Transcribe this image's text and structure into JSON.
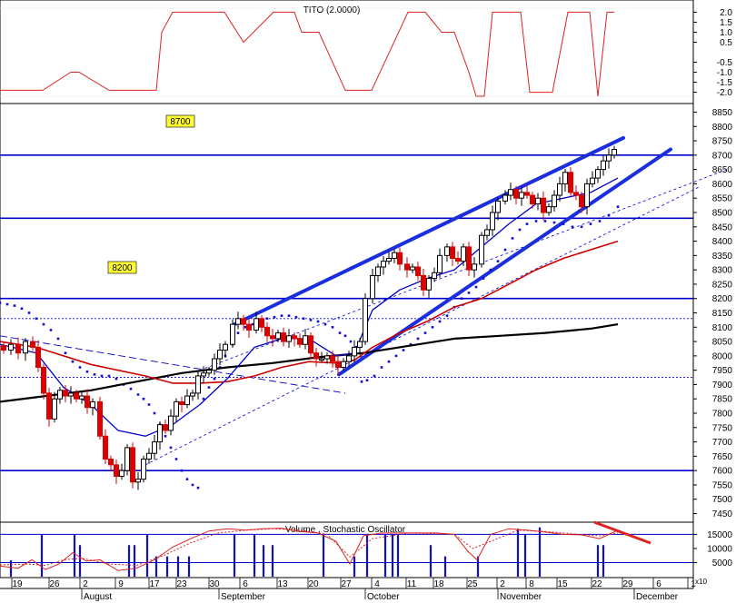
{
  "top_panel": {
    "title": "TITO (2.0000)",
    "ticks": [
      "2.0",
      "1.5",
      "1.0",
      "0.5",
      "-0.5",
      "-1.0",
      "-1.5",
      "-2.0"
    ],
    "tick_values": [
      2.0,
      1.5,
      1.0,
      0.5,
      -0.5,
      -1.0,
      -1.5,
      -2.0
    ],
    "ylim": [
      -2.2,
      2.2
    ],
    "series_x": [
      0,
      47,
      78,
      87,
      120,
      172,
      178,
      190,
      247,
      268,
      301,
      324,
      332,
      351,
      380,
      409,
      449,
      468,
      486,
      500,
      516,
      524,
      533,
      542,
      573,
      583,
      608,
      625,
      649,
      658,
      668,
      676
    ],
    "series_y": [
      -1.9,
      -1.9,
      -1.0,
      -1.0,
      -1.9,
      -1.9,
      1.0,
      2.0,
      2.0,
      0.5,
      2.0,
      2.0,
      1.0,
      1.0,
      -1.9,
      -1.9,
      2.0,
      2.0,
      1.0,
      1.0,
      -1.0,
      -2.2,
      -2.2,
      2.0,
      2.0,
      -2.0,
      -2.0,
      2.0,
      2.0,
      -2.2,
      2.0,
      2.0
    ]
  },
  "price_panel": {
    "ticks": [
      "8850",
      "8800",
      "8750",
      "8700",
      "8650",
      "8600",
      "8550",
      "8500",
      "8450",
      "8400",
      "8350",
      "8300",
      "8250",
      "8200",
      "8150",
      "8100",
      "8050",
      "8000",
      "7950",
      "7900",
      "7850",
      "7800",
      "7750",
      "7700",
      "7650",
      "7600",
      "7550",
      "7500",
      "7450"
    ],
    "tick_values": [
      8850,
      8800,
      8750,
      8700,
      8650,
      8600,
      8550,
      8500,
      8450,
      8400,
      8350,
      8300,
      8250,
      8200,
      8150,
      8100,
      8050,
      8000,
      7950,
      7900,
      7850,
      7800,
      7750,
      7700,
      7650,
      7600,
      7550,
      7500,
      7450
    ],
    "ylim": [
      7420,
      8880
    ],
    "label_8700": "8700",
    "label_8200": "8200",
    "horizontal_levels": [
      8700,
      8480,
      8200,
      7600
    ],
    "dotted_levels": [
      8130,
      7925
    ],
    "uptrend_upper": [
      [
        258,
        8110
      ],
      [
        686,
        8760
      ]
    ],
    "uptrend_lower": [
      [
        373,
        7935
      ],
      [
        738,
        8720
      ]
    ],
    "downtrend": [
      [
        0,
        8070
      ],
      [
        380,
        7870
      ]
    ],
    "channel_dashed_1": [
      [
        160,
        7620
      ],
      [
        770,
        8590
      ]
    ],
    "channel_dashed_2": [
      [
        220,
        7950
      ],
      [
        800,
        8650
      ]
    ],
    "candles_x": [
      4,
      12,
      20,
      28,
      36,
      42,
      48,
      54,
      60,
      66,
      72,
      78,
      84,
      90,
      96,
      102,
      110,
      116,
      122,
      128,
      134,
      140,
      146,
      152,
      158,
      164,
      170,
      176,
      182,
      188,
      194,
      200,
      206,
      212,
      218,
      224,
      230,
      236,
      242,
      248,
      256,
      262,
      268,
      274,
      282,
      288,
      294,
      300,
      306,
      312,
      318,
      324,
      330,
      336,
      342,
      348,
      354,
      360,
      366,
      372,
      378,
      384,
      390,
      396,
      402,
      410,
      416,
      422,
      428,
      434,
      440,
      448,
      454,
      460,
      466,
      472,
      478,
      484,
      492,
      498,
      504,
      510,
      516,
      522,
      530,
      536,
      542,
      548,
      556,
      562,
      568,
      574,
      580,
      586,
      592,
      598,
      604,
      610,
      616,
      622,
      628,
      634,
      640,
      646,
      652,
      658,
      664,
      670,
      676
    ],
    "candles_close": [
      8020,
      8040,
      8010,
      8050,
      8030,
      7960,
      7870,
      7780,
      7850,
      7880,
      7860,
      7870,
      7850,
      7860,
      7820,
      7840,
      7720,
      7640,
      7620,
      7580,
      7600,
      7680,
      7560,
      7570,
      7640,
      7660,
      7700,
      7760,
      7740,
      7790,
      7840,
      7830,
      7860,
      7870,
      7930,
      7940,
      7950,
      7990,
      8020,
      8040,
      8110,
      8130,
      8110,
      8090,
      8130,
      8100,
      8070,
      8060,
      8080,
      8050,
      8070,
      8060,
      8040,
      8070,
      8010,
      7990,
      7990,
      8000,
      7980,
      7960,
      7980,
      8000,
      8030,
      8050,
      8200,
      8280,
      8310,
      8330,
      8340,
      8360,
      8320,
      8300,
      8310,
      8280,
      8230,
      8270,
      8290,
      8350,
      8380,
      8340,
      8330,
      8380,
      8300,
      8320,
      8420,
      8440,
      8500,
      8540,
      8560,
      8580,
      8550,
      8570,
      8560,
      8530,
      8550,
      8500,
      8520,
      8560,
      8600,
      8640,
      8570,
      8560,
      8520,
      8600,
      8620,
      8650,
      8680,
      8700,
      8720
    ],
    "sma_fast_x": [
      0,
      40,
      70,
      100,
      130,
      160,
      190,
      220,
      250,
      280,
      310,
      340,
      370,
      390,
      410,
      440,
      470,
      500,
      530,
      560,
      590,
      620,
      650,
      680
    ],
    "sma_fast_y": [
      8040,
      8010,
      7890,
      7830,
      7740,
      7720,
      7760,
      7830,
      7920,
      8030,
      8060,
      8060,
      8000,
      8010,
      8160,
      8230,
      8270,
      8300,
      8380,
      8460,
      8530,
      8550,
      8570,
      8620
    ],
    "sma_mid_x": [
      0,
      40,
      70,
      100,
      130,
      160,
      190,
      220,
      250,
      280,
      310,
      340,
      370,
      390,
      410,
      440,
      470,
      500,
      530,
      560,
      590,
      620,
      650,
      680
    ],
    "sma_mid_y": [
      8050,
      8030,
      8000,
      7970,
      7950,
      7930,
      7905,
      7905,
      7910,
      7930,
      7960,
      7980,
      7975,
      7985,
      8030,
      8080,
      8120,
      8170,
      8200,
      8250,
      8300,
      8340,
      8370,
      8400
    ],
    "sma_slow_x": [
      0,
      50,
      100,
      150,
      200,
      250,
      300,
      350,
      400,
      450,
      500,
      550,
      600,
      650,
      680
    ],
    "sma_slow_y": [
      7840,
      7860,
      7880,
      7910,
      7940,
      7960,
      7975,
      7995,
      8010,
      8035,
      8060,
      8070,
      8080,
      8095,
      8110
    ],
    "psar_x": [
      0,
      8,
      16,
      24,
      32,
      40,
      48,
      56,
      64,
      72,
      80,
      88,
      96,
      104,
      112,
      120,
      128,
      136,
      144,
      152,
      158,
      164,
      170,
      176,
      182,
      188,
      194,
      200,
      206,
      212,
      218,
      224,
      230,
      236,
      242,
      248,
      256,
      262,
      270,
      278,
      286,
      294,
      302,
      310,
      318,
      326,
      334,
      342,
      350,
      358,
      366,
      374,
      380,
      386,
      392,
      398,
      404,
      412,
      420,
      428,
      436,
      444,
      452,
      460,
      468,
      476,
      484,
      492,
      500,
      508,
      516,
      524,
      532,
      540,
      548,
      556,
      564,
      572,
      580,
      590,
      600,
      610,
      620,
      630,
      640,
      650,
      660,
      670,
      680
    ],
    "psar_y": [
      8185,
      8180,
      8175,
      8165,
      8150,
      8130,
      8110,
      8090,
      8060,
      8010,
      7980,
      7960,
      7945,
      7935,
      7930,
      7930,
      7920,
      7900,
      7885,
      7865,
      7850,
      7830,
      7800,
      7760,
      7720,
      7680,
      7640,
      7600,
      7570,
      7550,
      7540,
      7850,
      7890,
      7920,
      7960,
      8000,
      8040,
      8080,
      8100,
      8110,
      8120,
      8130,
      8135,
      8140,
      8140,
      8135,
      8130,
      8125,
      8120,
      8110,
      8100,
      8080,
      8070,
      8050,
      8030,
      7910,
      7915,
      7930,
      7960,
      7980,
      8000,
      8020,
      8040,
      8060,
      8080,
      8100,
      8120,
      8140,
      8170,
      8200,
      8220,
      8240,
      8270,
      8300,
      8330,
      8370,
      8410,
      8440,
      8460,
      8470,
      8470,
      8465,
      8460,
      8450,
      8450,
      8460,
      8470,
      8490,
      8520
    ]
  },
  "volume_panel": {
    "title": "Volume , Stochastic Oscillator",
    "ticks": [
      "15000",
      "10000",
      "5000"
    ],
    "tick_values": [
      15000,
      10000,
      5000
    ],
    "multiplier": "x10",
    "ylim": [
      0,
      19000
    ],
    "bars_x": [
      12,
      46,
      82,
      88,
      142,
      148,
      162,
      172,
      184,
      196,
      208,
      258,
      280,
      290,
      300,
      356,
      390,
      404,
      424,
      432,
      438,
      474,
      490,
      526,
      570,
      578,
      594,
      658,
      664
    ],
    "bars_v": [
      5800,
      14800,
      14800,
      11200,
      11200,
      11200,
      14800,
      7200,
      7200,
      7200,
      7200,
      14800,
      14800,
      11200,
      11200,
      14800,
      7200,
      14800,
      14800,
      14800,
      14800,
      11200,
      7200,
      7200,
      17000,
      14800,
      17500,
      11200,
      11200
    ],
    "stoch_x": [
      0,
      20,
      35,
      50,
      65,
      80,
      95,
      110,
      130,
      150,
      170,
      190,
      210,
      230,
      250,
      270,
      290,
      310,
      330,
      350,
      370,
      385,
      400,
      420,
      450,
      480,
      500,
      515,
      525,
      540,
      560,
      580,
      600,
      620,
      640,
      660,
      680
    ],
    "stoch_y": [
      3800,
      3000,
      6000,
      2500,
      4500,
      8500,
      5500,
      6000,
      2200,
      3000,
      6000,
      10500,
      13500,
      16200,
      17000,
      16500,
      17000,
      17200,
      16000,
      15500,
      12500,
      4500,
      14500,
      15500,
      15500,
      15500,
      15000,
      9000,
      6000,
      15000,
      17000,
      16500,
      15800,
      15000,
      14800,
      13500,
      16500
    ],
    "stoch_sig_x": [
      0,
      30,
      50,
      70,
      90,
      120,
      150,
      180,
      210,
      240,
      270,
      300,
      330,
      360,
      385,
      410,
      450,
      500,
      520,
      540,
      570,
      600,
      630,
      660,
      680
    ],
    "stoch_sig_y": [
      4200,
      4500,
      4000,
      6000,
      6500,
      4500,
      4000,
      7500,
      12000,
      15500,
      16500,
      17000,
      16500,
      15000,
      7000,
      13500,
      15500,
      15000,
      10000,
      12500,
      16500,
      16000,
      15200,
      14500,
      15500
    ]
  },
  "x_axis": {
    "day_labels": [
      "19",
      "26",
      "2",
      "9",
      "17",
      "23",
      "30",
      "6",
      "13",
      "20",
      "27",
      "4",
      "11",
      "18",
      "25",
      "2",
      "8",
      "15",
      "22",
      "29",
      "6",
      "1"
    ],
    "day_label_x": [
      19,
      60,
      94,
      133,
      170,
      200,
      236,
      270,
      311,
      345,
      381,
      415,
      453,
      483,
      520,
      553,
      585,
      619,
      657,
      691,
      725,
      763
    ],
    "months": [
      "August",
      "September",
      "October",
      "November",
      "December"
    ],
    "month_x": [
      92,
      243,
      404,
      550,
      700
    ]
  },
  "colors": {
    "frame": "#000000",
    "level_blue": "#0000cc",
    "trend_blue": "#1a2ee0",
    "psar_blue": "#1010d8",
    "sma_fast": "#0000cc",
    "sma_mid": "#cc0000",
    "sma_slow": "#000000",
    "tito_red": "#dd2222",
    "candle_up": "#000000",
    "candle_down": "#dd0000",
    "label_box": "#ffff33",
    "volume_bar": "#1010c8",
    "stoch_red": "#dd2222",
    "downtrend_red": "#dd2222"
  }
}
